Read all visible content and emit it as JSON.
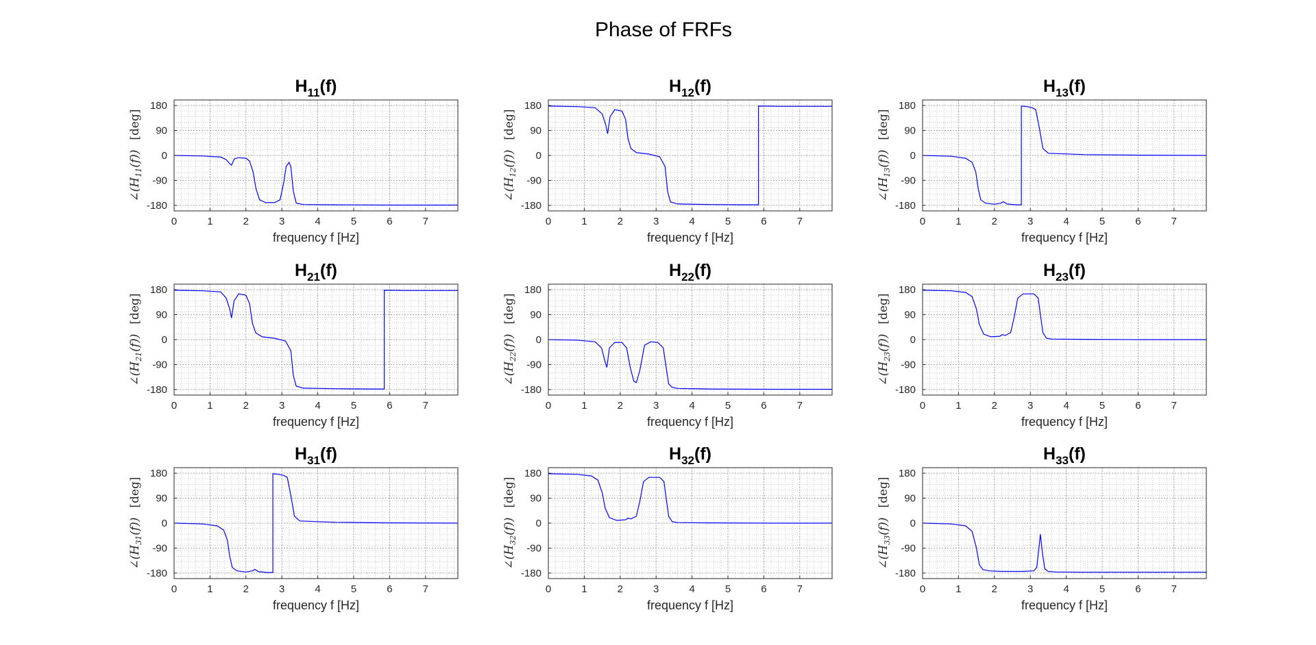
{
  "figure": {
    "title": "Phase of FRFs"
  },
  "style": {
    "line_color": "#0000ff",
    "axis_color": "#262626",
    "grid_color": "#b8b8b8",
    "background": "#ffffff"
  },
  "chart_data": [
    {
      "type": "line",
      "id": "H11",
      "title_main": "H",
      "title_sub": "11",
      "title_tail": "(f)",
      "xlabel": "frequency f [Hz]",
      "ylabel_main": "∠(H",
      "ylabel_sub": "11",
      "ylabel_tail": "(f))",
      "ylabel_unit": "[deg]",
      "xlim": [
        0,
        7.9
      ],
      "ylim": [
        -200,
        200
      ],
      "xticks": [
        0,
        1,
        2,
        3,
        4,
        5,
        6,
        7
      ],
      "yticks": [
        -180,
        -90,
        0,
        90,
        180
      ],
      "grid": "minor",
      "series": [
        {
          "x": [
            0,
            0.8,
            1.3,
            1.45,
            1.55,
            1.6,
            1.68,
            1.8,
            2.0,
            2.1,
            2.2,
            2.28,
            2.38,
            2.55,
            2.8,
            2.95,
            3.05,
            3.12,
            3.2,
            3.25,
            3.32,
            3.4,
            3.6,
            4.5,
            6,
            7.9
          ],
          "y": [
            0,
            -2,
            -6,
            -15,
            -30,
            -35,
            -12,
            -8,
            -10,
            -20,
            -60,
            -120,
            -160,
            -170,
            -170,
            -160,
            -100,
            -40,
            -25,
            -40,
            -130,
            -172,
            -177,
            -178,
            -179,
            -179
          ]
        }
      ]
    },
    {
      "type": "line",
      "id": "H12",
      "title_main": "H",
      "title_sub": "12",
      "title_tail": "(f)",
      "xlabel": "frequency f [Hz]",
      "ylabel_main": "∠(H",
      "ylabel_sub": "12",
      "ylabel_tail": "(f))",
      "ylabel_unit": "[deg]",
      "xlim": [
        0,
        7.9
      ],
      "ylim": [
        -200,
        200
      ],
      "xticks": [
        0,
        1,
        2,
        3,
        4,
        5,
        6,
        7
      ],
      "yticks": [
        -180,
        -90,
        0,
        90,
        180
      ],
      "grid": "minor",
      "series": [
        {
          "x": [
            0,
            0.8,
            1.3,
            1.5,
            1.6,
            1.65,
            1.72,
            1.85,
            2.05,
            2.15,
            2.22,
            2.3,
            2.45,
            2.8,
            3.1,
            3.25,
            3.32,
            3.4,
            3.6,
            4.5,
            5.5,
            5.85,
            5.85,
            6.5,
            7.9
          ],
          "y": [
            178,
            176,
            172,
            150,
            110,
            78,
            140,
            165,
            160,
            130,
            60,
            25,
            10,
            5,
            -5,
            -40,
            -130,
            -168,
            -175,
            -177,
            -178,
            -178,
            178,
            177,
            177
          ]
        }
      ]
    },
    {
      "type": "line",
      "id": "H13",
      "title_main": "H",
      "title_sub": "13",
      "title_tail": "(f)",
      "xlabel": "frequency f [Hz]",
      "ylabel_main": "∠(H",
      "ylabel_sub": "13",
      "ylabel_tail": "(f))",
      "ylabel_unit": "[deg]",
      "xlim": [
        0,
        7.9
      ],
      "ylim": [
        -200,
        200
      ],
      "xticks": [
        0,
        1,
        2,
        3,
        4,
        5,
        6,
        7
      ],
      "yticks": [
        -180,
        -90,
        0,
        90,
        180
      ],
      "grid": "minor",
      "series": [
        {
          "x": [
            0,
            0.8,
            1.2,
            1.38,
            1.48,
            1.55,
            1.62,
            1.75,
            2.0,
            2.18,
            2.25,
            2.35,
            2.6,
            2.75,
            2.75,
            2.9,
            3.05,
            3.15,
            3.25,
            3.35,
            3.5,
            4.5,
            6,
            7.9
          ],
          "y": [
            0,
            -3,
            -10,
            -25,
            -60,
            -120,
            -160,
            -172,
            -176,
            -172,
            -167,
            -175,
            -178,
            -178,
            178,
            176,
            172,
            165,
            100,
            25,
            8,
            3,
            1,
            0
          ]
        }
      ]
    },
    {
      "type": "line",
      "id": "H21",
      "title_main": "H",
      "title_sub": "21",
      "title_tail": "(f)",
      "xlabel": "frequency f [Hz]",
      "ylabel_main": "∠(H",
      "ylabel_sub": "21",
      "ylabel_tail": "(f))",
      "ylabel_unit": "[deg]",
      "xlim": [
        0,
        7.9
      ],
      "ylim": [
        -200,
        200
      ],
      "xticks": [
        0,
        1,
        2,
        3,
        4,
        5,
        6,
        7
      ],
      "yticks": [
        -180,
        -90,
        0,
        90,
        180
      ],
      "grid": "minor",
      "series": [
        {
          "x": [
            0,
            0.8,
            1.3,
            1.45,
            1.55,
            1.6,
            1.67,
            1.8,
            2.0,
            2.1,
            2.18,
            2.27,
            2.45,
            2.8,
            3.1,
            3.25,
            3.32,
            3.4,
            3.6,
            4.5,
            5.5,
            5.85,
            5.85,
            6.5,
            7.9
          ],
          "y": [
            178,
            176,
            172,
            150,
            110,
            78,
            140,
            165,
            160,
            130,
            60,
            25,
            10,
            5,
            -5,
            -40,
            -130,
            -168,
            -175,
            -177,
            -178,
            -178,
            178,
            177,
            177
          ]
        }
      ]
    },
    {
      "type": "line",
      "id": "H22",
      "title_main": "H",
      "title_sub": "22",
      "title_tail": "(f)",
      "xlabel": "frequency f [Hz]",
      "ylabel_main": "∠(H",
      "ylabel_sub": "22",
      "ylabel_tail": "(f))",
      "ylabel_unit": "[deg]",
      "xlim": [
        0,
        7.9
      ],
      "ylim": [
        -200,
        200
      ],
      "xticks": [
        0,
        1,
        2,
        3,
        4,
        5,
        6,
        7
      ],
      "yticks": [
        -180,
        -90,
        0,
        90,
        180
      ],
      "grid": "minor",
      "series": [
        {
          "x": [
            0,
            0.8,
            1.3,
            1.48,
            1.58,
            1.63,
            1.7,
            1.85,
            2.05,
            2.18,
            2.28,
            2.38,
            2.45,
            2.55,
            2.68,
            2.85,
            3.05,
            3.2,
            3.28,
            3.35,
            3.45,
            3.6,
            4.5,
            6,
            7.9
          ],
          "y": [
            0,
            -2,
            -8,
            -30,
            -80,
            -100,
            -30,
            -10,
            -10,
            -30,
            -100,
            -150,
            -155,
            -110,
            -20,
            -8,
            -10,
            -30,
            -100,
            -160,
            -172,
            -176,
            -178,
            -179,
            -179
          ]
        }
      ]
    },
    {
      "type": "line",
      "id": "H23",
      "title_main": "H",
      "title_sub": "23",
      "title_tail": "(f)",
      "xlabel": "frequency f [Hz]",
      "ylabel_main": "∠(H",
      "ylabel_sub": "23",
      "ylabel_tail": "(f))",
      "ylabel_unit": "[deg]",
      "xlim": [
        0,
        7.9
      ],
      "ylim": [
        -200,
        200
      ],
      "xticks": [
        0,
        1,
        2,
        3,
        4,
        5,
        6,
        7
      ],
      "yticks": [
        -180,
        -90,
        0,
        90,
        180
      ],
      "grid": "minor",
      "series": [
        {
          "x": [
            0,
            0.8,
            1.2,
            1.38,
            1.5,
            1.58,
            1.7,
            1.9,
            2.15,
            2.22,
            2.3,
            2.45,
            2.55,
            2.65,
            2.8,
            3.1,
            3.22,
            3.28,
            3.35,
            3.45,
            3.6,
            4.5,
            6,
            7.9
          ],
          "y": [
            178,
            176,
            170,
            155,
            110,
            55,
            20,
            10,
            12,
            18,
            15,
            25,
            80,
            150,
            165,
            165,
            150,
            90,
            25,
            5,
            2,
            1,
            0,
            0
          ]
        }
      ]
    },
    {
      "type": "line",
      "id": "H31",
      "title_main": "H",
      "title_sub": "31",
      "title_tail": "(f)",
      "xlabel": "frequency f [Hz]",
      "ylabel_main": "∠(H",
      "ylabel_sub": "31",
      "ylabel_tail": "(f))",
      "ylabel_unit": "[deg]",
      "xlim": [
        0,
        7.9
      ],
      "ylim": [
        -200,
        200
      ],
      "xticks": [
        0,
        1,
        2,
        3,
        4,
        5,
        6,
        7
      ],
      "yticks": [
        -180,
        -90,
        0,
        90,
        180
      ],
      "grid": "minor",
      "series": [
        {
          "x": [
            0,
            0.8,
            1.2,
            1.38,
            1.48,
            1.55,
            1.62,
            1.75,
            2.0,
            2.18,
            2.25,
            2.35,
            2.6,
            2.75,
            2.75,
            2.9,
            3.05,
            3.15,
            3.25,
            3.35,
            3.5,
            4.5,
            6,
            7.9
          ],
          "y": [
            0,
            -3,
            -10,
            -25,
            -60,
            -120,
            -160,
            -172,
            -176,
            -172,
            -167,
            -175,
            -178,
            -178,
            178,
            176,
            172,
            165,
            100,
            25,
            8,
            3,
            1,
            0
          ]
        }
      ]
    },
    {
      "type": "line",
      "id": "H32",
      "title_main": "H",
      "title_sub": "32",
      "title_tail": "(f)",
      "xlabel": "frequency f [Hz]",
      "ylabel_main": "∠(H",
      "ylabel_sub": "32",
      "ylabel_tail": "(f))",
      "ylabel_unit": "[deg]",
      "xlim": [
        0,
        7.9
      ],
      "ylim": [
        -200,
        200
      ],
      "xticks": [
        0,
        1,
        2,
        3,
        4,
        5,
        6,
        7
      ],
      "yticks": [
        -180,
        -90,
        0,
        90,
        180
      ],
      "grid": "minor",
      "series": [
        {
          "x": [
            0,
            0.8,
            1.2,
            1.38,
            1.5,
            1.58,
            1.7,
            1.9,
            2.15,
            2.22,
            2.3,
            2.45,
            2.55,
            2.65,
            2.8,
            3.1,
            3.22,
            3.28,
            3.35,
            3.45,
            3.6,
            4.5,
            6,
            7.9
          ],
          "y": [
            178,
            176,
            170,
            155,
            110,
            55,
            20,
            10,
            12,
            18,
            15,
            25,
            80,
            150,
            165,
            165,
            150,
            90,
            25,
            5,
            2,
            1,
            0,
            0
          ]
        }
      ]
    },
    {
      "type": "line",
      "id": "H33",
      "title_main": "H",
      "title_sub": "33",
      "title_tail": "(f)",
      "xlabel": "frequency f [Hz]",
      "ylabel_main": "∠(H",
      "ylabel_sub": "33",
      "ylabel_tail": "(f))",
      "ylabel_unit": "[deg]",
      "xlim": [
        0,
        7.9
      ],
      "ylim": [
        -200,
        200
      ],
      "xticks": [
        0,
        1,
        2,
        3,
        4,
        5,
        6,
        7
      ],
      "yticks": [
        -180,
        -90,
        0,
        90,
        180
      ],
      "grid": "minor",
      "series": [
        {
          "x": [
            0,
            0.8,
            1.2,
            1.38,
            1.5,
            1.58,
            1.68,
            1.85,
            2.2,
            2.8,
            3.1,
            3.18,
            3.23,
            3.28,
            3.33,
            3.4,
            3.5,
            3.7,
            4.5,
            6,
            7.9
          ],
          "y": [
            0,
            -3,
            -10,
            -30,
            -90,
            -150,
            -168,
            -172,
            -174,
            -174,
            -172,
            -160,
            -100,
            -40,
            -100,
            -165,
            -174,
            -176,
            -177,
            -177,
            -177
          ]
        }
      ]
    }
  ]
}
